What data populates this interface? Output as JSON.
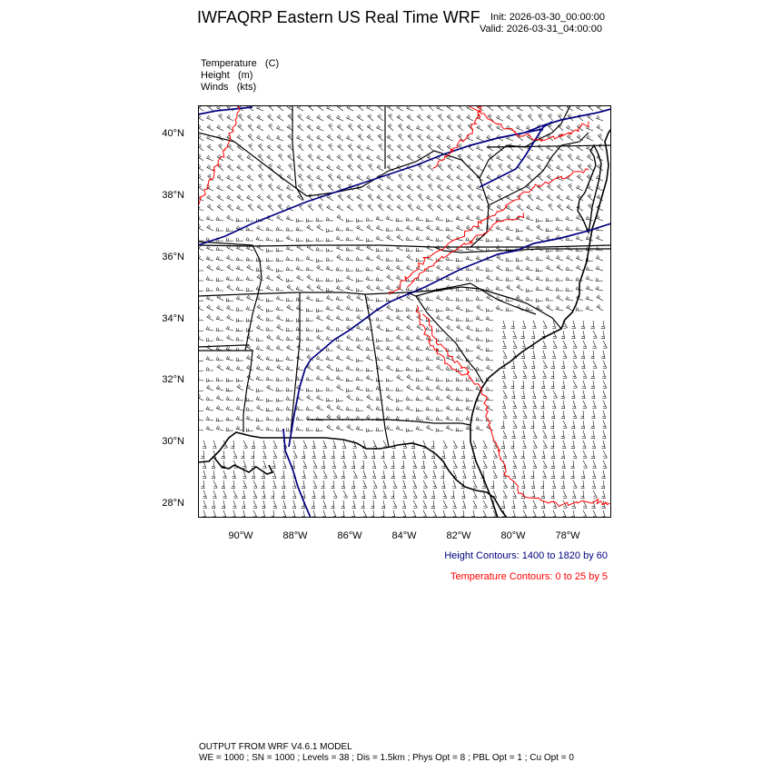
{
  "header": {
    "title": "IWFAQRP Eastern US Real Time WRF",
    "init": "Init: 2026-03-30_00:00:00",
    "valid": "Valid: 2026-03-31_04:00:00"
  },
  "fields": [
    "Temperature   (C)",
    "Height   (m)",
    "Winds   (kts)"
  ],
  "map": {
    "lat_labels": [
      "40°N",
      "38°N",
      "36°N",
      "34°N",
      "32°N",
      "30°N",
      "28°N"
    ],
    "lon_labels": [
      "90°W",
      "88°W",
      "86°W",
      "84°W",
      "82°W",
      "80°W",
      "78°W"
    ],
    "height_color": "#000080",
    "temperature_color": "#ff0000",
    "border_color": "#000000",
    "barb_color": "#000000"
  },
  "legend": {
    "height": "Height Contours: 1400 to 1820 by 60",
    "temperature": "Temperature Contours: 0 to 25 by 5"
  },
  "footer": {
    "line1": "OUTPUT FROM WRF V4.6.1 MODEL",
    "line2": "WE = 1000 ; SN = 1000 ; Levels = 38 ; Dis = 1.5km ; Phys Opt = 8 ; PBL Opt = 1 ; Cu Opt = 0"
  }
}
